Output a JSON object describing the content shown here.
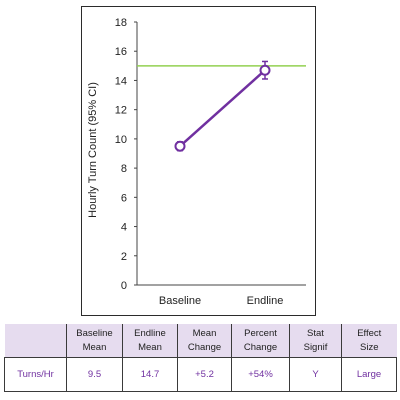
{
  "chart_data": {
    "type": "line",
    "categories": [
      "Baseline",
      "Endline"
    ],
    "series": [
      {
        "values": [
          9.5,
          14.7
        ],
        "ci_low": [
          9.2,
          14.1
        ],
        "ci_high": [
          9.8,
          15.3
        ],
        "color": "#7030a0"
      }
    ],
    "reference_line": {
      "y": 15,
      "color": "#92d050"
    },
    "ylabel": "Hourly Turn Count (95% CI)",
    "xlabel": "",
    "ylim": [
      0,
      18
    ],
    "yticks": [
      0,
      2,
      4,
      6,
      8,
      10,
      12,
      14,
      16,
      18
    ],
    "grid": false,
    "legend": false
  },
  "table": {
    "headers": [
      {
        "line1": "",
        "line2": ""
      },
      {
        "line1": "Baseline",
        "line2": "Mean"
      },
      {
        "line1": "Endline",
        "line2": "Mean"
      },
      {
        "line1": "Mean",
        "line2": "Change"
      },
      {
        "line1": "Percent",
        "line2": "Change"
      },
      {
        "line1": "Stat",
        "line2": "Signif"
      },
      {
        "line1": "Effect",
        "line2": "Size"
      }
    ],
    "row": [
      "Turns/Hr",
      "9.5",
      "14.7",
      "+5.2",
      "+54%",
      "Y",
      "Large"
    ]
  },
  "colors": {
    "header_bg": "#e6dcef",
    "value_text": "#7030a0"
  }
}
